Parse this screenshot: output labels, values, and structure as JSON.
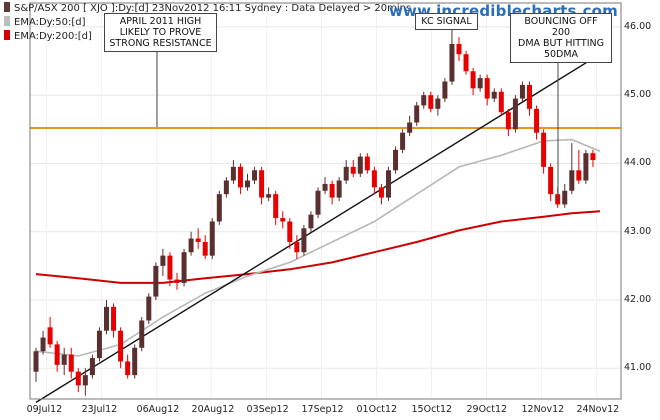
{
  "legend": [
    {
      "label": "S&P/ASX 200 [ XJO ]:Dy:[d]  23Nov2012 16:11  Sydney : Data Delayed > 20mins",
      "color": "#5a3a3a"
    },
    {
      "label": "EMA:Dy:50:[d]",
      "color": "#bdbdbd"
    },
    {
      "label": "EMA:Dy:200:[d]",
      "color": "#d40000"
    }
  ],
  "watermark": "www.incrediblecharts.com",
  "annotations": [
    {
      "text": "APRIL 2011 HIGH LIKELY TO PROVE STRONG RESISTANCE",
      "lines": [
        "APRIL 2011 HIGH",
        "LIKELY TO PROVE",
        "STRONG RESISTANCE"
      ]
    },
    {
      "text": "KC SIGNAL",
      "lines": [
        "KC SIGNAL"
      ]
    },
    {
      "text": "BOUNCING OFF 200 DMA BUT HITTING 50DMA",
      "lines": [
        "BOUNCING OFF 200",
        "DMA BUT HITTING",
        "50DMA"
      ]
    }
  ],
  "chart_data": {
    "type": "candlestick",
    "y_ticks": [
      "46.00",
      "45.00",
      "44.00",
      "43.00",
      "42.00",
      "41.00"
    ],
    "y_tick_values": [
      46,
      45,
      44,
      43,
      42,
      41
    ],
    "ylim": [
      40.55,
      46.35
    ],
    "x_ticks": [
      "09Jul12",
      "23Jul12",
      "06Aug12",
      "20Aug12",
      "03Sep12",
      "17Sep12",
      "01Oct12",
      "15Oct12",
      "29Oct12",
      "12Nov12",
      "24Nov12"
    ],
    "resistance_level": 44.52,
    "candles": [
      [
        40.95,
        41.25,
        40.8,
        41.3
      ],
      [
        41.25,
        41.45,
        41.2,
        41.55
      ],
      [
        41.6,
        41.35,
        41.3,
        41.75
      ],
      [
        41.35,
        41.05,
        40.95,
        41.4
      ],
      [
        41.05,
        41.2,
        40.9,
        41.3
      ],
      [
        41.2,
        40.95,
        40.85,
        41.3
      ],
      [
        40.95,
        40.75,
        40.65,
        41.0
      ],
      [
        40.75,
        40.9,
        40.6,
        41.0
      ],
      [
        40.9,
        41.15,
        40.85,
        41.2
      ],
      [
        41.15,
        41.55,
        41.1,
        41.6
      ],
      [
        41.55,
        41.9,
        41.5,
        42.0
      ],
      [
        41.9,
        41.55,
        41.45,
        41.95
      ],
      [
        41.55,
        41.1,
        41.0,
        41.6
      ],
      [
        41.1,
        40.9,
        40.85,
        41.2
      ],
      [
        40.9,
        41.3,
        40.85,
        41.35
      ],
      [
        41.3,
        41.7,
        41.25,
        41.75
      ],
      [
        41.7,
        42.05,
        41.65,
        42.1
      ],
      [
        42.05,
        42.5,
        42.0,
        42.55
      ],
      [
        42.5,
        42.65,
        42.35,
        42.75
      ],
      [
        42.65,
        42.3,
        42.2,
        42.7
      ],
      [
        42.3,
        42.25,
        42.15,
        42.4
      ],
      [
        42.25,
        42.7,
        42.2,
        42.75
      ],
      [
        42.7,
        42.9,
        42.65,
        43.0
      ],
      [
        42.9,
        42.85,
        42.75,
        43.05
      ],
      [
        42.85,
        42.65,
        42.6,
        42.95
      ],
      [
        42.65,
        43.15,
        42.6,
        43.2
      ],
      [
        43.15,
        43.55,
        43.1,
        43.6
      ],
      [
        43.55,
        43.75,
        43.5,
        43.8
      ],
      [
        43.75,
        43.95,
        43.7,
        44.05
      ],
      [
        43.95,
        43.65,
        43.55,
        44.0
      ],
      [
        43.65,
        43.75,
        43.6,
        43.85
      ],
      [
        43.75,
        43.9,
        43.7,
        43.95
      ],
      [
        43.9,
        43.5,
        43.4,
        43.95
      ],
      [
        43.5,
        43.55,
        43.45,
        43.65
      ],
      [
        43.55,
        43.2,
        43.1,
        43.6
      ],
      [
        43.2,
        43.15,
        43.05,
        43.3
      ],
      [
        43.15,
        42.85,
        42.75,
        43.2
      ],
      [
        42.85,
        42.7,
        42.6,
        42.95
      ],
      [
        42.7,
        43.05,
        42.65,
        43.1
      ],
      [
        43.05,
        43.25,
        43.0,
        43.3
      ],
      [
        43.25,
        43.6,
        43.2,
        43.65
      ],
      [
        43.6,
        43.7,
        43.55,
        43.8
      ],
      [
        43.7,
        43.5,
        43.4,
        43.75
      ],
      [
        43.5,
        43.75,
        43.45,
        43.8
      ],
      [
        43.75,
        43.95,
        43.7,
        44.05
      ],
      [
        43.95,
        43.85,
        43.8,
        44.05
      ],
      [
        43.85,
        44.1,
        43.8,
        44.15
      ],
      [
        44.1,
        43.9,
        43.85,
        44.15
      ],
      [
        43.9,
        43.65,
        43.55,
        43.95
      ],
      [
        43.65,
        43.5,
        43.4,
        43.7
      ],
      [
        43.5,
        43.9,
        43.45,
        43.95
      ],
      [
        43.9,
        44.2,
        43.85,
        44.25
      ],
      [
        44.2,
        44.45,
        44.15,
        44.5
      ],
      [
        44.45,
        44.6,
        44.4,
        44.7
      ],
      [
        44.6,
        44.85,
        44.55,
        44.9
      ],
      [
        44.85,
        45.0,
        44.8,
        45.05
      ],
      [
        45.0,
        44.8,
        44.75,
        45.05
      ],
      [
        44.8,
        44.95,
        44.7,
        45.0
      ],
      [
        44.95,
        45.2,
        44.9,
        45.25
      ],
      [
        45.2,
        45.75,
        45.15,
        46.15
      ],
      [
        45.75,
        45.6,
        45.5,
        45.85
      ],
      [
        45.6,
        45.35,
        45.3,
        45.65
      ],
      [
        45.35,
        45.1,
        45.0,
        45.4
      ],
      [
        45.1,
        45.25,
        45.05,
        45.3
      ],
      [
        45.25,
        44.95,
        44.85,
        45.3
      ],
      [
        44.95,
        45.05,
        44.9,
        45.1
      ],
      [
        45.05,
        44.75,
        44.7,
        45.1
      ],
      [
        44.75,
        44.5,
        44.4,
        44.8
      ],
      [
        44.5,
        44.95,
        44.45,
        45.0
      ],
      [
        44.95,
        45.15,
        44.9,
        45.2
      ],
      [
        45.15,
        44.8,
        44.7,
        45.2
      ],
      [
        44.8,
        44.45,
        44.35,
        44.85
      ],
      [
        44.45,
        43.95,
        43.85,
        44.5
      ],
      [
        43.95,
        43.55,
        43.45,
        44.0
      ],
      [
        43.55,
        43.4,
        43.35,
        43.65
      ],
      [
        43.4,
        43.6,
        43.35,
        43.7
      ],
      [
        43.6,
        43.9,
        43.55,
        44.3
      ],
      [
        43.9,
        43.75,
        43.7,
        44.2
      ],
      [
        43.75,
        44.15,
        43.7,
        44.2
      ],
      [
        44.15,
        44.05,
        43.95,
        44.2
      ]
    ],
    "ema50": [
      [
        0,
        41.25
      ],
      [
        6,
        41.18
      ],
      [
        12,
        41.35
      ],
      [
        18,
        41.75
      ],
      [
        24,
        42.1
      ],
      [
        30,
        42.35
      ],
      [
        36,
        42.55
      ],
      [
        42,
        42.85
      ],
      [
        48,
        43.15
      ],
      [
        54,
        43.55
      ],
      [
        60,
        43.95
      ],
      [
        66,
        44.12
      ],
      [
        72,
        44.33
      ],
      [
        76,
        44.35
      ],
      [
        80,
        44.18
      ]
    ],
    "ema200": [
      [
        0,
        42.38
      ],
      [
        6,
        42.32
      ],
      [
        12,
        42.25
      ],
      [
        18,
        42.25
      ],
      [
        24,
        42.32
      ],
      [
        30,
        42.38
      ],
      [
        36,
        42.45
      ],
      [
        42,
        42.55
      ],
      [
        48,
        42.7
      ],
      [
        54,
        42.85
      ],
      [
        60,
        43.02
      ],
      [
        66,
        43.15
      ],
      [
        72,
        43.22
      ],
      [
        76,
        43.27
      ],
      [
        80,
        43.3
      ]
    ],
    "trendline": [
      [
        0,
        40.5
      ],
      [
        80,
        45.6
      ]
    ]
  }
}
